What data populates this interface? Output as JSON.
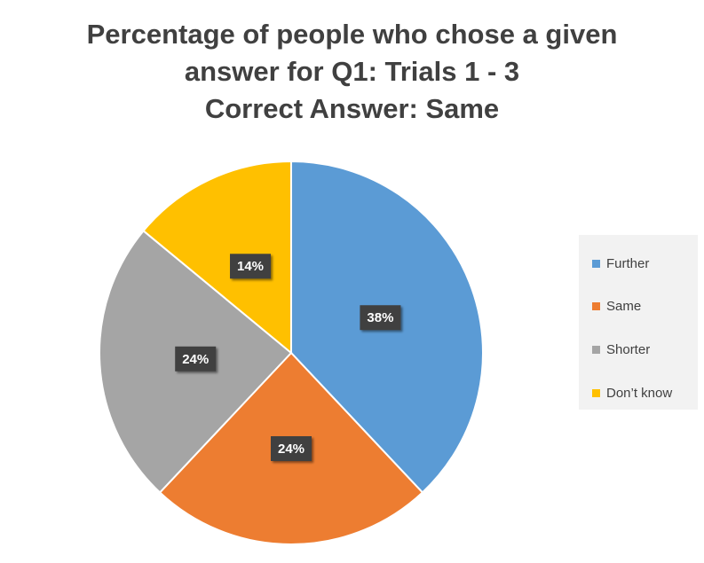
{
  "chart_data": {
    "type": "pie",
    "title_lines": [
      "Percentage of people who chose a given",
      "answer for Q1: Trials 1 - 3",
      "Correct Answer: Same"
    ],
    "categories": [
      "Further",
      "Same",
      "Shorter",
      "Don’t know"
    ],
    "values": [
      38,
      24,
      24,
      14
    ],
    "data_labels": [
      "38%",
      "24%",
      "24%",
      "14%"
    ],
    "colors": [
      "#5b9bd5",
      "#ed7d31",
      "#a5a5a5",
      "#ffc000"
    ],
    "legend_position": "right"
  }
}
